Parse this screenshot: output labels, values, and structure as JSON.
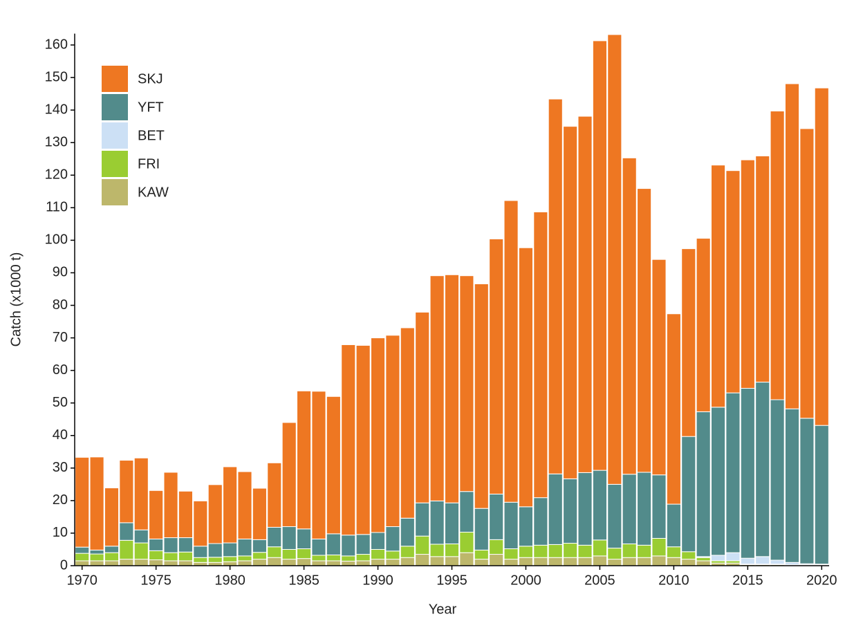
{
  "chart_data": {
    "type": "stacked_bar",
    "x_label": "Year",
    "y_label": "Catch (x1000 t)",
    "x": [
      1970,
      1971,
      1972,
      1973,
      1974,
      1975,
      1976,
      1977,
      1978,
      1979,
      1980,
      1981,
      1982,
      1983,
      1984,
      1985,
      1986,
      1987,
      1988,
      1989,
      1990,
      1991,
      1992,
      1993,
      1994,
      1995,
      1996,
      1997,
      1998,
      1999,
      2000,
      2001,
      2002,
      2003,
      2004,
      2005,
      2006,
      2007,
      2008,
      2009,
      2010,
      2011,
      2012,
      2013,
      2014,
      2015,
      2016,
      2017,
      2018,
      2019,
      2020
    ],
    "xlim": [
      1969.5,
      2020.5
    ],
    "xticks": [
      1970,
      1975,
      1980,
      1985,
      1990,
      1995,
      2000,
      2005,
      2010,
      2015,
      2020
    ],
    "ylim": [
      0,
      163.5
    ],
    "yticks": [
      0,
      10,
      20,
      30,
      40,
      50,
      60,
      70,
      80,
      90,
      100,
      110,
      120,
      130,
      140,
      150,
      160
    ],
    "legend_position": "upper left",
    "series": [
      {
        "name": "SKJ",
        "color": "#ee7722",
        "values": [
          27.6,
          28.6,
          17.9,
          19.2,
          22.1,
          14.9,
          20.1,
          14.3,
          13.9,
          18.1,
          23.4,
          20.7,
          15.8,
          19.8,
          32.0,
          42.4,
          45.4,
          42.2,
          58.5,
          58.1,
          59.8,
          58.8,
          58.5,
          58.6,
          69.2,
          70.1,
          66.3,
          69.0,
          78.4,
          92.7,
          79.6,
          87.8,
          115.2,
          108.3,
          109.5,
          132.0,
          138.2,
          97.2,
          87.2,
          66.2,
          58.5,
          57.7,
          53.3,
          74.4,
          68.3,
          70.2,
          69.5,
          88.7,
          99.9,
          89.0,
          103.7
        ]
      },
      {
        "name": "YFT",
        "color": "#528b8b",
        "values": [
          1.9,
          1.2,
          2.0,
          5.4,
          4.0,
          3.6,
          4.6,
          4.4,
          3.5,
          4.2,
          4.2,
          5.2,
          3.9,
          6.0,
          7.0,
          6.1,
          5.0,
          6.5,
          6.4,
          6.1,
          5.2,
          7.5,
          8.6,
          10.2,
          13.3,
          12.6,
          12.5,
          12.8,
          14.0,
          14.3,
          12.1,
          14.6,
          21.7,
          19.8,
          22.3,
          21.4,
          19.6,
          21.4,
          22.4,
          19.5,
          13.1,
          35.4,
          44.5,
          45.5,
          49.1,
          52.2,
          53.6,
          49.3,
          47.2,
          44.7,
          42.6
        ]
      },
      {
        "name": "BET",
        "color": "#cce0f5",
        "values": [
          0,
          0,
          0,
          0,
          0,
          0,
          0,
          0,
          0,
          0,
          0,
          0,
          0,
          0,
          0,
          0,
          0,
          0,
          0,
          0,
          0,
          0,
          0,
          0,
          0,
          0,
          0,
          0,
          0,
          0,
          0,
          0,
          0,
          0,
          0,
          0,
          0,
          0,
          0,
          0,
          0,
          0,
          0.3,
          1.7,
          2.5,
          1.8,
          2.3,
          1.2,
          0.7,
          0.3,
          0.2
        ]
      },
      {
        "name": "FRI",
        "color": "#9acd32",
        "values": [
          2.3,
          2.1,
          2.5,
          5.8,
          5.0,
          2.8,
          2.5,
          2.7,
          1.5,
          1.6,
          1.6,
          1.5,
          2.1,
          3.3,
          3.0,
          3.0,
          1.7,
          1.8,
          1.6,
          2.0,
          3.0,
          2.5,
          3.5,
          5.6,
          3.8,
          3.9,
          6.3,
          2.8,
          4.5,
          3.2,
          3.5,
          3.8,
          4.0,
          4.4,
          3.8,
          4.9,
          3.4,
          4.2,
          3.8,
          5.4,
          3.3,
          2.3,
          1.0,
          0.7,
          0.7,
          0.2,
          0.2,
          0.2,
          0.1,
          0.1,
          0.1
        ]
      },
      {
        "name": "KAW",
        "color": "#bdb76b",
        "values": [
          1.5,
          1.5,
          1.5,
          2.0,
          2.0,
          1.8,
          1.5,
          1.5,
          1.0,
          1.0,
          1.2,
          1.5,
          2.0,
          2.5,
          2.0,
          2.2,
          1.5,
          1.5,
          1.4,
          1.5,
          2.0,
          2.0,
          2.5,
          3.5,
          2.8,
          2.8,
          4.0,
          2.0,
          3.5,
          2.0,
          2.5,
          2.5,
          2.5,
          2.5,
          2.5,
          3.0,
          2.0,
          2.5,
          2.5,
          3.0,
          2.5,
          2.0,
          1.5,
          0.8,
          0.8,
          0.3,
          0.3,
          0.3,
          0.2,
          0.2,
          0.2
        ]
      }
    ]
  }
}
